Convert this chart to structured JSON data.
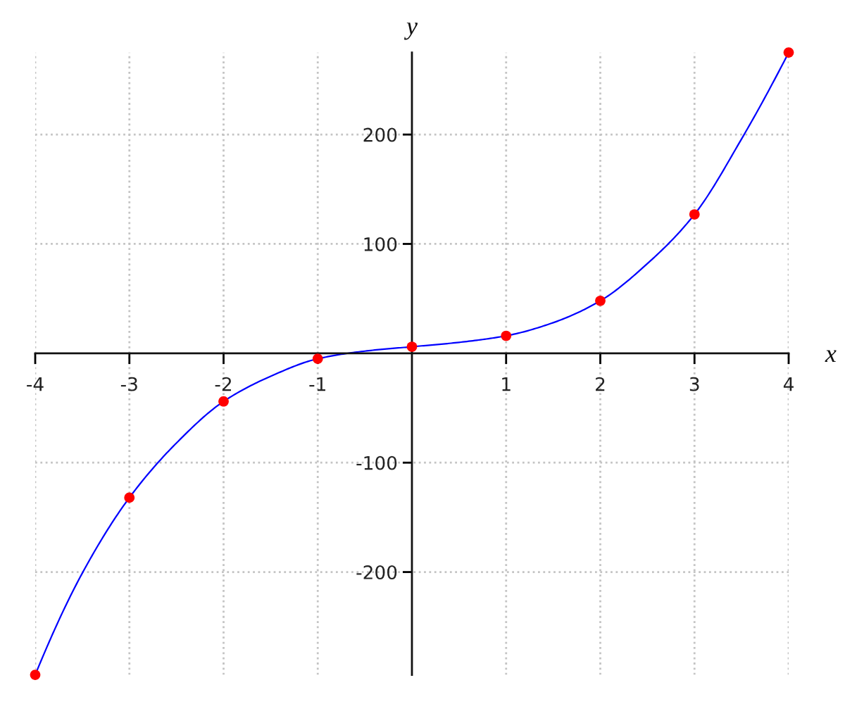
{
  "chart_data": {
    "type": "line",
    "xlabel": "x",
    "ylabel": "y",
    "xlim": [
      -4,
      4
    ],
    "ylim": [
      -294,
      275
    ],
    "xticks": [
      -4,
      -3,
      -2,
      -1,
      1,
      2,
      3,
      4
    ],
    "yticks": [
      -200,
      -100,
      100,
      200
    ],
    "grid": true,
    "series": [
      {
        "color": "#0000ff",
        "x": [
          -4,
          -3.5,
          -3,
          -2.5,
          -2,
          -1.5,
          -1,
          -0.5,
          0,
          0.5,
          1,
          1.5,
          2,
          2.5,
          3,
          3.5,
          4
        ],
        "values": [
          -294,
          -201,
          -132,
          -82,
          -44,
          -21,
          -5,
          2,
          6,
          10,
          16,
          28,
          48,
          82,
          127,
          196,
          275
        ]
      },
      {
        "type": "scatter",
        "color": "#ff0000",
        "marker": "circle",
        "x": [
          -4,
          -3,
          -2,
          -1,
          0,
          1,
          2,
          3,
          4
        ],
        "values": [
          -294,
          -132,
          -44,
          -5,
          6,
          16,
          48,
          127,
          275
        ]
      }
    ]
  }
}
